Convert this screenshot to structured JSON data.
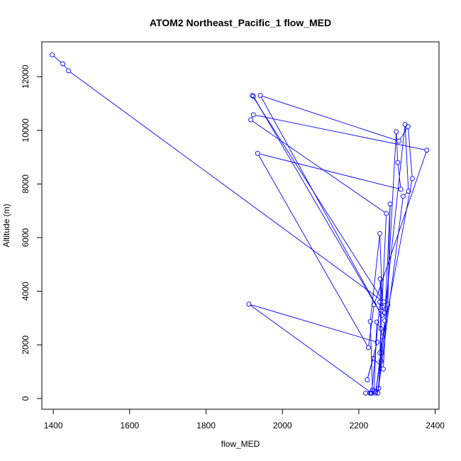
{
  "chart_data": {
    "type": "line",
    "title": "ATOM2 Northeast_Pacific_1 flow_MED",
    "xlabel": "flow_MED",
    "ylabel": "Altitude (m)",
    "xlim": [
      1370,
      2410
    ],
    "ylim": [
      -400,
      13300
    ],
    "x_ticks": [
      1400,
      1600,
      1800,
      2000,
      2200,
      2400
    ],
    "y_ticks": [
      0,
      2000,
      4000,
      6000,
      8000,
      10000,
      12000
    ],
    "grid": false,
    "marker": "open-circle",
    "color": "#0000ff",
    "x": [
      1397,
      1425,
      1440,
      2265,
      1921,
      1924,
      2260,
      1942,
      2305,
      2329,
      2340,
      2255,
      2272,
      1917,
      1924,
      2378,
      2240,
      2225,
      1935,
      2310,
      2302,
      2298,
      2264,
      2238,
      2222,
      2248,
      1912,
      2234,
      2255,
      2268,
      2321,
      2330,
      2316,
      2250,
      2262,
      2258,
      2247,
      2240,
      2232,
      2218,
      2236,
      2230,
      2255,
      2262,
      2256,
      2258,
      2276,
      2282,
      2268,
      2244,
      2229,
      2236,
      2244,
      2260,
      2252
    ],
    "y": [
      12820,
      12480,
      12220,
      3600,
      11300,
      11270,
      3100,
      11300,
      9600,
      10140,
      8200,
      1700,
      6900,
      10390,
      10580,
      9260,
      3500,
      1900,
      9140,
      7800,
      8800,
      9950,
      1100,
      1500,
      700,
      2100,
      3520,
      200,
      3600,
      3200,
      10220,
      7730,
      7540,
      200,
      2300,
      2600,
      2850,
      280,
      200,
      200,
      320,
      2870,
      6150,
      3400,
      4460,
      1400,
      3500,
      7250,
      2900,
      200,
      200,
      320,
      250,
      1700,
      380
    ]
  }
}
